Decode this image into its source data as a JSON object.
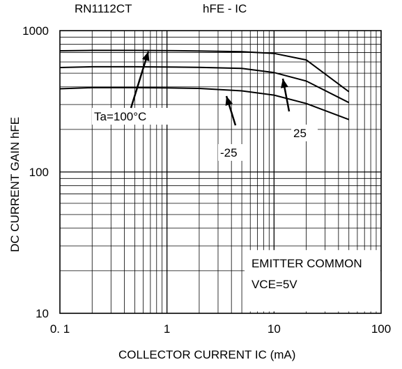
{
  "chart_data": {
    "type": "line",
    "part_number": "RN1112CT",
    "title": "hFE - IC",
    "xlabel": "COLLECTOR CURRENT IC (mA)",
    "ylabel": "DC CURRENT GAIN hFE",
    "xscale": "log",
    "yscale": "log",
    "xlim": [
      0.1,
      100
    ],
    "ylim": [
      10,
      1000
    ],
    "grid": true,
    "x_tick_labels": [
      "0. 1",
      "1",
      "10",
      "100"
    ],
    "y_tick_labels": [
      "10",
      "100",
      "1000"
    ],
    "annotations": [
      "EMITTER COMMON",
      "VCE=5V"
    ],
    "series": [
      {
        "name": "Ta=100°C",
        "x": [
          0.1,
          0.2,
          0.5,
          1,
          2,
          5,
          10,
          20,
          50
        ],
        "y": [
          720,
          725,
          725,
          722,
          718,
          710,
          690,
          620,
          370
        ]
      },
      {
        "name": "25",
        "x": [
          0.1,
          0.2,
          0.5,
          1,
          2,
          5,
          10,
          20,
          50
        ],
        "y": [
          548,
          555,
          555,
          553,
          550,
          540,
          505,
          440,
          310
        ]
      },
      {
        "name": "-25",
        "x": [
          0.1,
          0.2,
          0.5,
          1,
          2,
          5,
          10,
          20,
          50
        ],
        "y": [
          388,
          395,
          395,
          393,
          390,
          375,
          350,
          305,
          235
        ]
      }
    ]
  }
}
